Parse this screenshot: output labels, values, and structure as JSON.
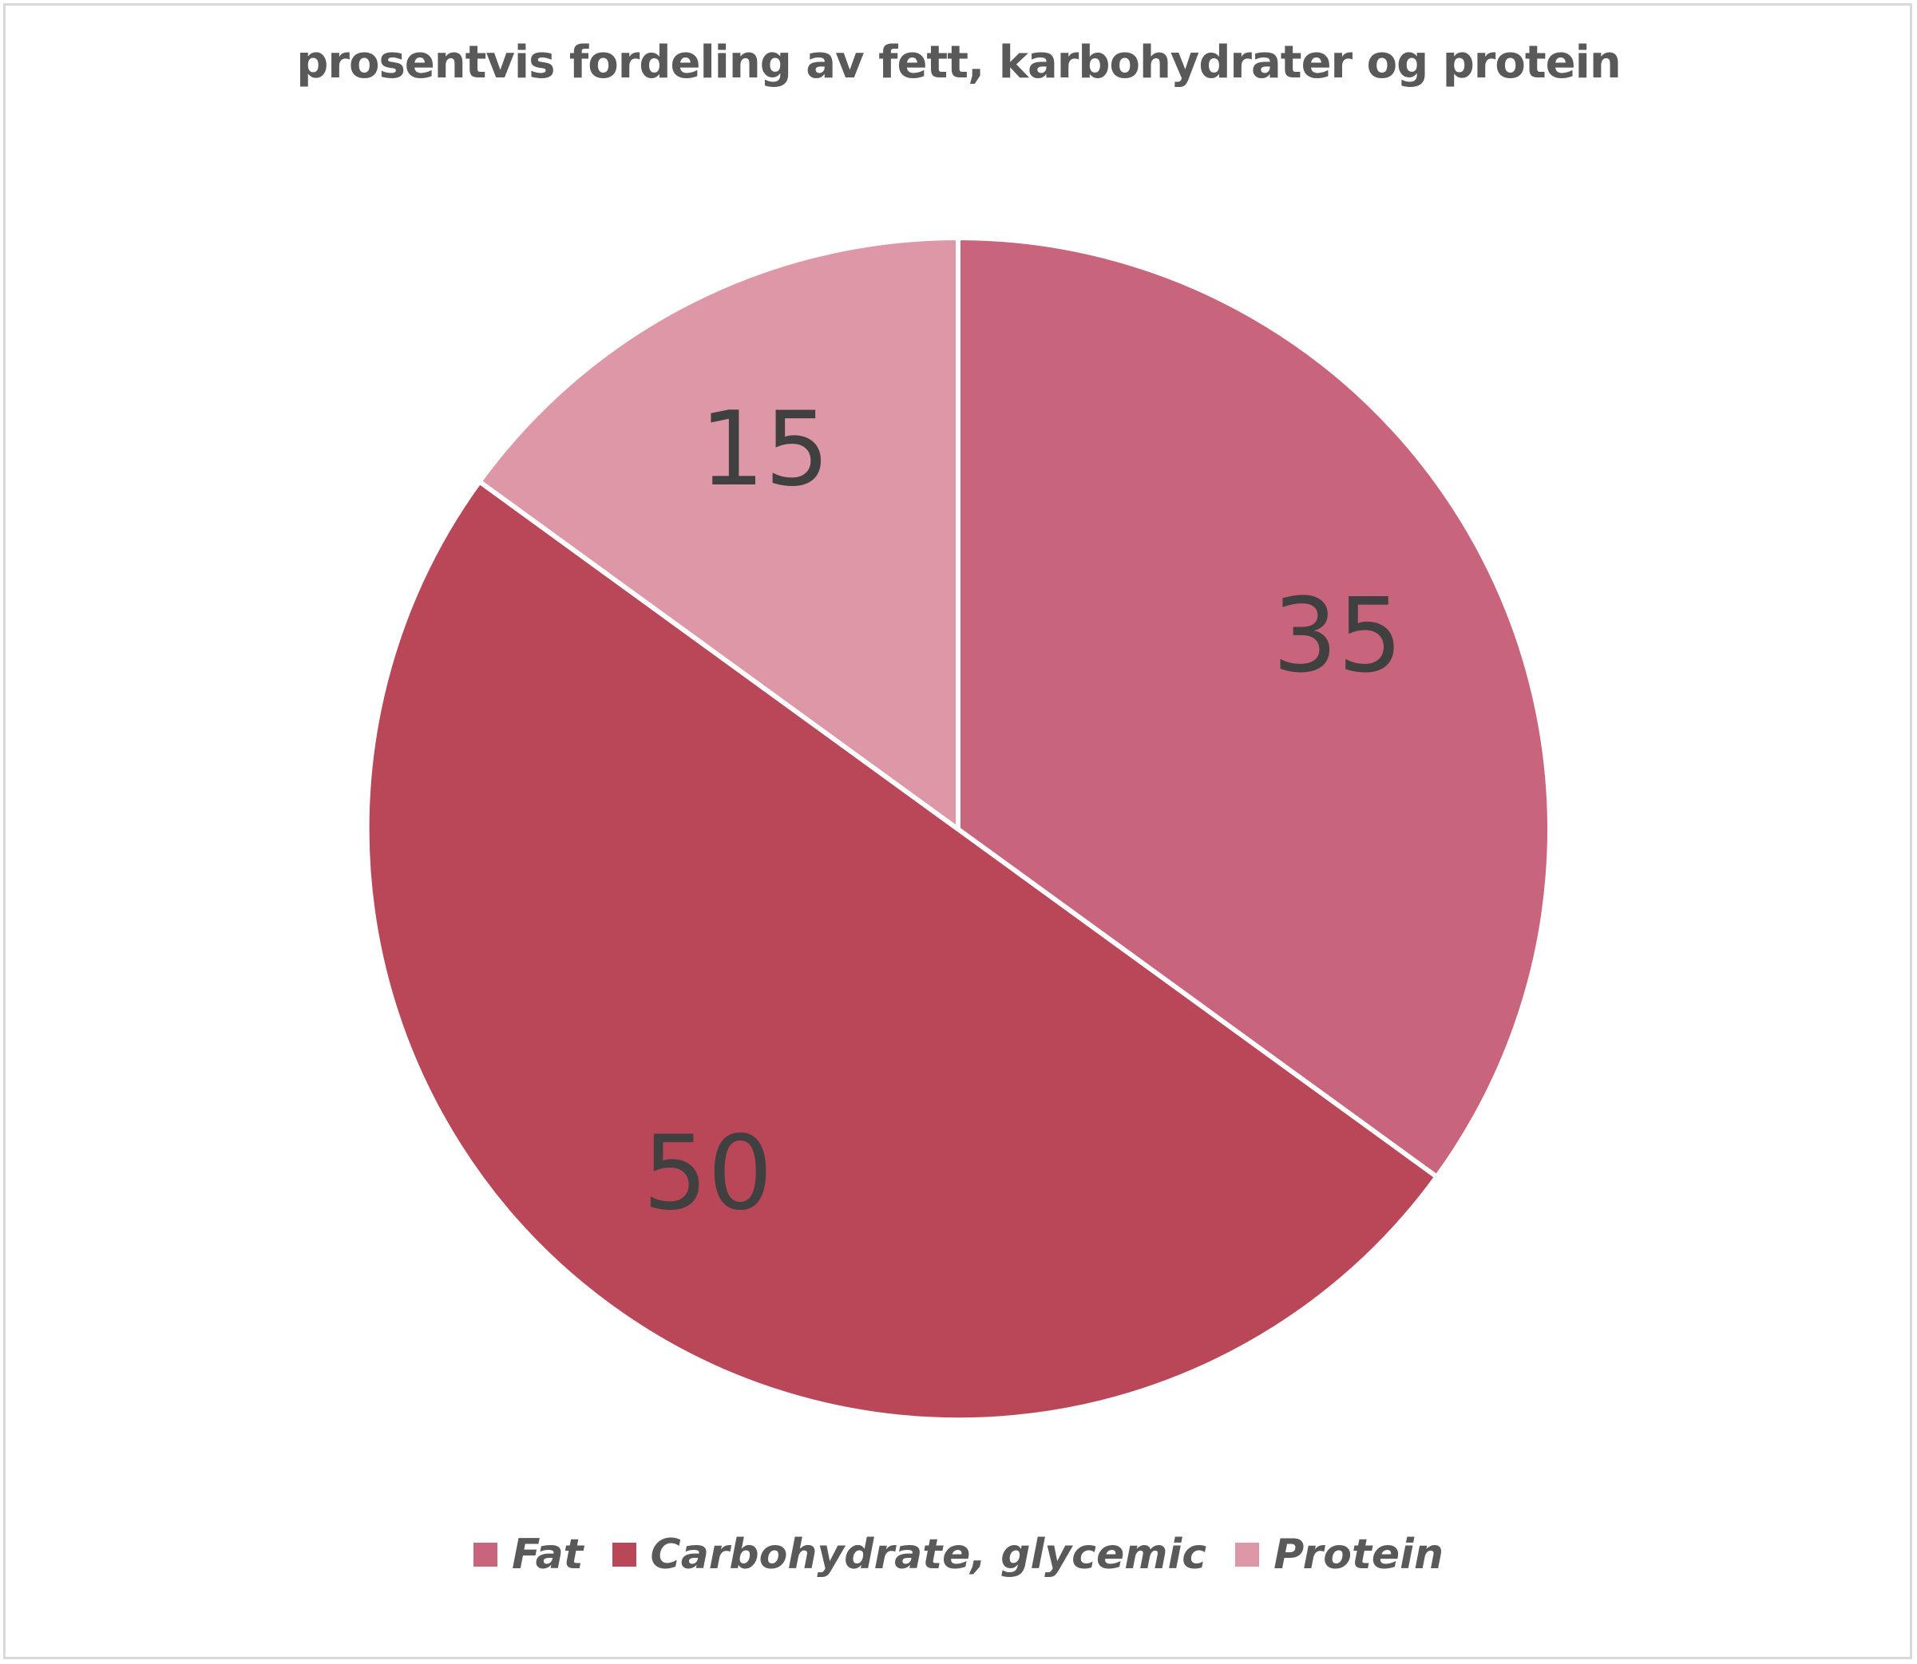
{
  "chart_data": {
    "type": "pie",
    "title": "prosentvis fordeling av fett, karbohydrater og protein",
    "slices": [
      {
        "name": "Fat",
        "value": 35,
        "label": "35",
        "color": "#c8647c"
      },
      {
        "name": "Carbohydrate, glycemic",
        "value": 50,
        "label": "50",
        "color": "#b94758"
      },
      {
        "name": "Protein",
        "value": 15,
        "label": "15",
        "color": "#dd97a6"
      }
    ],
    "start_angle_deg": 0,
    "direction": "clockwise",
    "legend_position": "bottom"
  }
}
